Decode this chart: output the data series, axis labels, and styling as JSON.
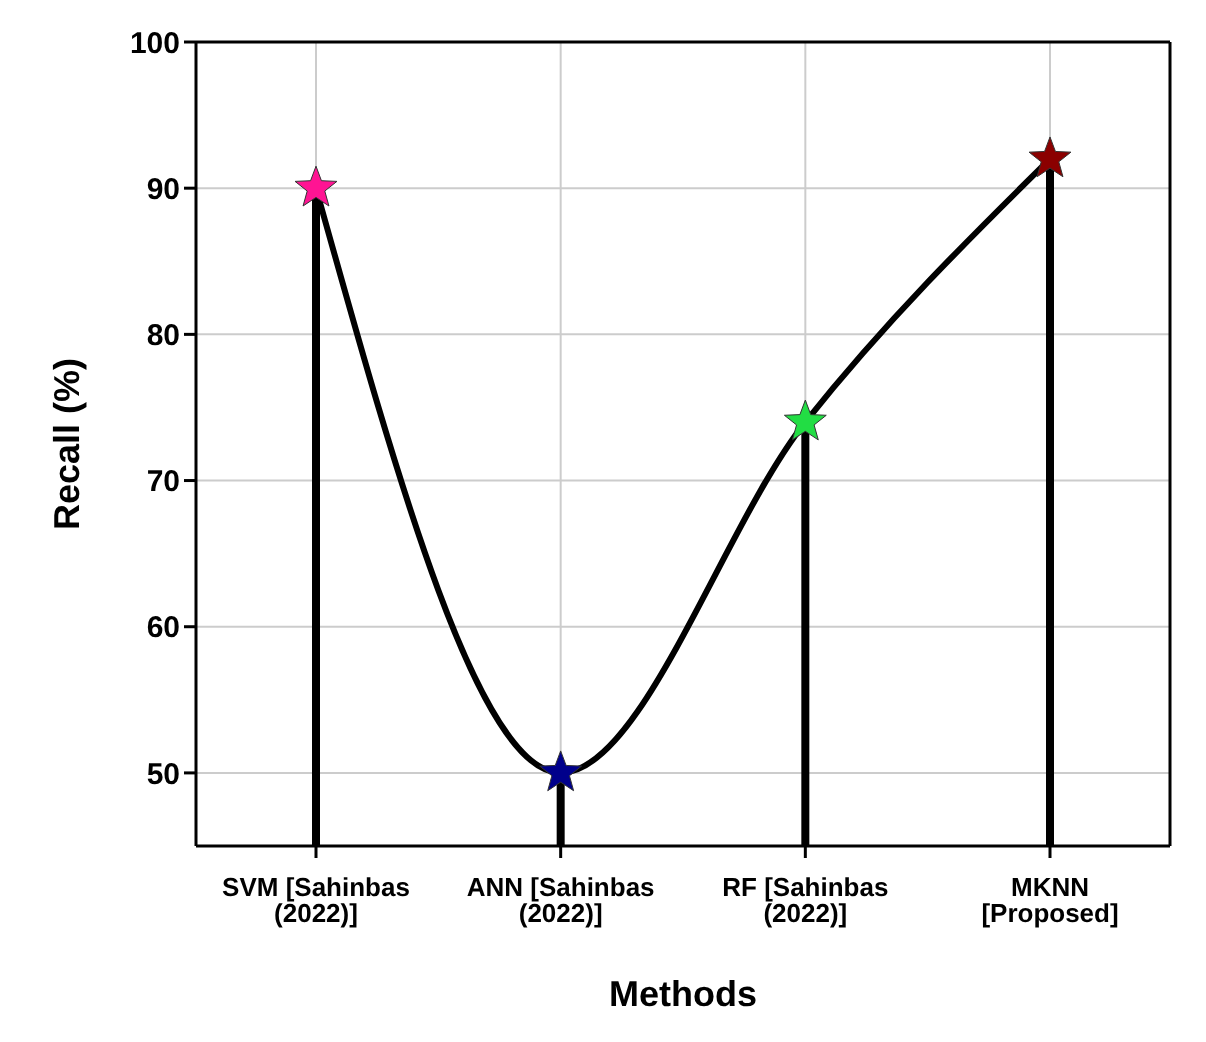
{
  "chart_data": {
    "type": "lollipop",
    "xlabel": "Methods",
    "ylabel": "Recall (%)",
    "categories": [
      "SVM [Sahinbas (2022)]",
      "ANN [Sahinbas (2022)]",
      "RF [Sahinbas (2022)]",
      "MKNN [Proposed]"
    ],
    "series": [
      {
        "color": "#000000",
        "colors": [
          "#ff1493",
          "#00008b",
          "#22dd44",
          "#8b0000"
        ],
        "marker": "star",
        "values": [
          90,
          50,
          74,
          92
        ]
      },
      {
        "type": "line",
        "color": "#000000",
        "marker": "none",
        "values": [
          90,
          50,
          74,
          92
        ]
      }
    ],
    "ylim": [
      45,
      100
    ],
    "yticks": [
      50,
      60,
      70,
      80,
      90,
      100
    ],
    "grid": true,
    "legend": false
  }
}
